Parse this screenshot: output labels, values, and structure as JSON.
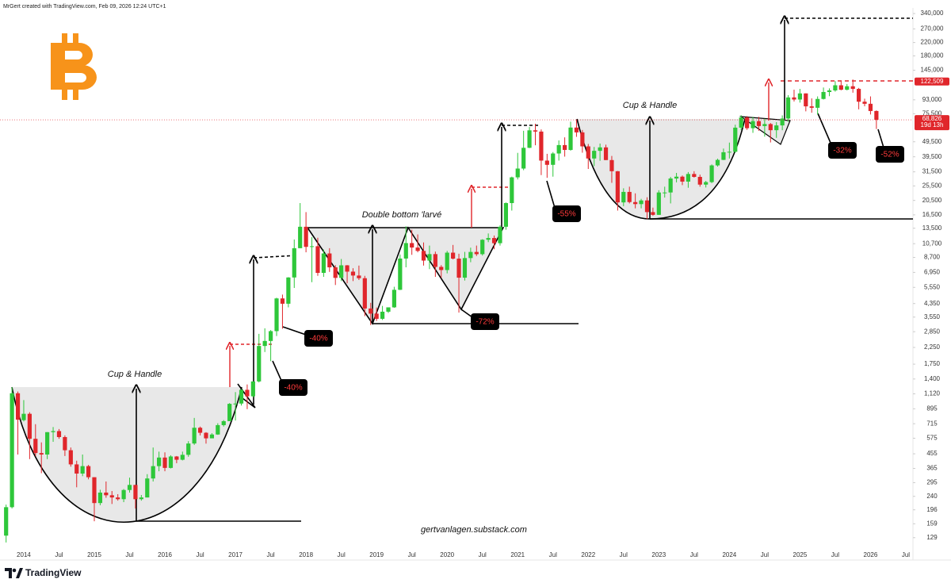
{
  "header": "MrGert created with TradingView.com, Feb 09, 2026 12:24 UTC+1",
  "footer_brand": "TradingView",
  "chart_data": {
    "type": "candlestick",
    "log": true,
    "grid": false,
    "up_color": "#2ec73a",
    "down_color": "#e0262b",
    "x": [
      "2013-10",
      "2013-11",
      "2013-12",
      "2014-01",
      "2014-02",
      "2014-03",
      "2014-04",
      "2014-05",
      "2014-06",
      "2014-07",
      "2014-08",
      "2014-09",
      "2014-10",
      "2014-11",
      "2014-12",
      "2015-01",
      "2015-02",
      "2015-03",
      "2015-04",
      "2015-05",
      "2015-06",
      "2015-07",
      "2015-08",
      "2015-09",
      "2015-10",
      "2015-11",
      "2015-12",
      "2016-01",
      "2016-02",
      "2016-03",
      "2016-04",
      "2016-05",
      "2016-06",
      "2016-07",
      "2016-08",
      "2016-09",
      "2016-10",
      "2016-11",
      "2016-12",
      "2017-01",
      "2017-02",
      "2017-03",
      "2017-04",
      "2017-05",
      "2017-06",
      "2017-07",
      "2017-08",
      "2017-09",
      "2017-10",
      "2017-11",
      "2017-12",
      "2018-01",
      "2018-02",
      "2018-03",
      "2018-04",
      "2018-05",
      "2018-06",
      "2018-07",
      "2018-08",
      "2018-09",
      "2018-10",
      "2018-11",
      "2018-12",
      "2019-01",
      "2019-02",
      "2019-03",
      "2019-04",
      "2019-05",
      "2019-06",
      "2019-07",
      "2019-08",
      "2019-09",
      "2019-10",
      "2019-11",
      "2019-12",
      "2020-01",
      "2020-02",
      "2020-03",
      "2020-04",
      "2020-05",
      "2020-06",
      "2020-07",
      "2020-08",
      "2020-09",
      "2020-10",
      "2020-11",
      "2020-12",
      "2021-01",
      "2021-02",
      "2021-03",
      "2021-04",
      "2021-05",
      "2021-06",
      "2021-07",
      "2021-08",
      "2021-09",
      "2021-10",
      "2021-11",
      "2021-12",
      "2022-01",
      "2022-02",
      "2022-03",
      "2022-04",
      "2022-05",
      "2022-06",
      "2022-07",
      "2022-08",
      "2022-09",
      "2022-10",
      "2022-11",
      "2022-12",
      "2023-01",
      "2023-02",
      "2023-03",
      "2023-04",
      "2023-05",
      "2023-06",
      "2023-07",
      "2023-08",
      "2023-09",
      "2023-10",
      "2023-11",
      "2023-12",
      "2024-01",
      "2024-02",
      "2024-03",
      "2024-04",
      "2024-05",
      "2024-06",
      "2024-07",
      "2024-08",
      "2024-09",
      "2024-10",
      "2024-11",
      "2024-12",
      "2025-01",
      "2025-02",
      "2025-03",
      "2025-04",
      "2025-05",
      "2025-06",
      "2025-07",
      "2025-08",
      "2025-09",
      "2025-10",
      "2025-11",
      "2025-12",
      "2026-01",
      "2026-02"
    ],
    "open": [
      133,
      204,
      1130,
      754,
      830,
      570,
      460,
      450,
      630,
      640,
      585,
      480,
      388,
      338,
      378,
      320,
      217,
      254,
      244,
      236,
      230,
      264,
      285,
      230,
      236,
      314,
      378,
      430,
      368,
      437,
      416,
      448,
      531,
      673,
      624,
      574,
      608,
      700,
      743,
      964,
      968,
      1190,
      1080,
      1350,
      2300,
      2480,
      2875,
      4700,
      4340,
      6440,
      10000,
      13800,
      10200,
      10300,
      6900,
      9240,
      7500,
      6400,
      7730,
      7030,
      6630,
      6370,
      4040,
      3740,
      3460,
      3850,
      4110,
      5350,
      8560,
      10800,
      10100,
      9600,
      8300,
      9150,
      7550,
      7200,
      9350,
      8550,
      6420,
      8620,
      9450,
      9140,
      11350,
      11650,
      10780,
      13800,
      19700,
      29000,
      33100,
      45200,
      58800,
      57700,
      37300,
      35000,
      41500,
      47100,
      43800,
      61300,
      57000,
      46200,
      38500,
      43200,
      45500,
      37600,
      31800,
      19900,
      23300,
      20000,
      19400,
      20500,
      17200,
      16500,
      23100,
      23100,
      28500,
      29300,
      27200,
      30500,
      29200,
      26000,
      27000,
      34700,
      37700,
      42300,
      42600,
      61200,
      71300,
      60700,
      67500,
      62700,
      64600,
      58900,
      63300,
      70200,
      96400,
      93400,
      102400,
      84300,
      82500,
      94200,
      104600,
      107100,
      115700,
      108200,
      114000,
      109600,
      90400,
      87600,
      78600
    ],
    "high": [
      212,
      1240,
      1160,
      1020,
      850,
      710,
      540,
      630,
      680,
      660,
      600,
      500,
      410,
      450,
      385,
      320,
      265,
      300,
      260,
      248,
      268,
      318,
      285,
      245,
      335,
      500,
      470,
      465,
      445,
      440,
      470,
      550,
      780,
      685,
      630,
      620,
      720,
      755,
      975,
      1150,
      1200,
      1290,
      1350,
      2760,
      3000,
      2920,
      4750,
      4980,
      6470,
      11400,
      19700,
      17200,
      11800,
      11700,
      9800,
      10000,
      7750,
      8500,
      7760,
      7400,
      7700,
      6600,
      4400,
      4100,
      4200,
      4100,
      5600,
      9100,
      13900,
      13200,
      12300,
      10900,
      10400,
      9500,
      7750,
      9600,
      10500,
      9200,
      9460,
      10080,
      10400,
      11450,
      12480,
      12100,
      14100,
      19900,
      29300,
      41900,
      58400,
      61800,
      64900,
      59600,
      41300,
      42400,
      50500,
      52900,
      67000,
      69000,
      59100,
      47900,
      45800,
      48200,
      47400,
      40000,
      31900,
      24600,
      25200,
      22800,
      21000,
      21500,
      18400,
      23900,
      25200,
      29200,
      31000,
      29800,
      31400,
      31800,
      30200,
      27500,
      35200,
      38400,
      44700,
      48900,
      64000,
      73800,
      72800,
      72000,
      72000,
      70000,
      65600,
      66500,
      73600,
      99800,
      108300,
      109600,
      102500,
      95000,
      97900,
      111900,
      110500,
      123200,
      124400,
      117900,
      126200,
      111200,
      94600,
      97900,
      79300
    ],
    "low": [
      120,
      200,
      450,
      740,
      420,
      440,
      340,
      420,
      545,
      570,
      440,
      375,
      275,
      325,
      310,
      165,
      210,
      235,
      214,
      225,
      220,
      254,
      200,
      225,
      236,
      300,
      350,
      350,
      365,
      395,
      412,
      435,
      520,
      600,
      530,
      575,
      605,
      685,
      745,
      750,
      940,
      890,
      1060,
      1330,
      2100,
      1830,
      2670,
      2980,
      4110,
      5500,
      10000,
      9400,
      6000,
      6600,
      6500,
      7000,
      5750,
      6100,
      5900,
      6100,
      6200,
      3600,
      3150,
      3350,
      3400,
      3780,
      4080,
      5330,
      7500,
      9050,
      9400,
      7700,
      7300,
      6500,
      6400,
      6850,
      8450,
      3800,
      6150,
      8100,
      8900,
      8950,
      10950,
      9850,
      10400,
      13200,
      17600,
      28100,
      32300,
      45000,
      47000,
      30000,
      28800,
      29300,
      37300,
      39600,
      43300,
      53300,
      42000,
      32900,
      34300,
      37200,
      37600,
      26700,
      17600,
      18800,
      19600,
      18200,
      18200,
      15500,
      16300,
      16500,
      21400,
      19600,
      26900,
      25800,
      24800,
      28900,
      25200,
      24900,
      26600,
      34100,
      37600,
      38500,
      41900,
      59000,
      59200,
      56600,
      58400,
      53500,
      49000,
      52500,
      58900,
      66800,
      90700,
      89200,
      78200,
      76600,
      74400,
      93400,
      98200,
      105100,
      107300,
      107200,
      103500,
      80600,
      84400,
      74600,
      60000
    ],
    "close": [
      204,
      1130,
      760,
      830,
      570,
      460,
      450,
      630,
      640,
      585,
      480,
      388,
      338,
      378,
      320,
      217,
      254,
      244,
      236,
      230,
      264,
      285,
      230,
      236,
      314,
      378,
      430,
      368,
      437,
      416,
      448,
      531,
      673,
      624,
      574,
      608,
      700,
      743,
      964,
      968,
      1190,
      1080,
      1350,
      2300,
      2480,
      2875,
      4700,
      4340,
      6440,
      10000,
      13800,
      10200,
      10300,
      6900,
      9240,
      7500,
      6400,
      7730,
      7030,
      6630,
      6370,
      4040,
      3740,
      3460,
      3850,
      4110,
      5350,
      8560,
      10800,
      10100,
      9600,
      8300,
      9150,
      7550,
      7200,
      9350,
      8550,
      6420,
      8620,
      9450,
      9140,
      11350,
      11650,
      10780,
      13800,
      19700,
      29000,
      33100,
      45200,
      58800,
      57700,
      37300,
      35000,
      41500,
      47100,
      43800,
      61300,
      57000,
      46200,
      38500,
      43200,
      45500,
      37600,
      31800,
      19900,
      23300,
      20000,
      19400,
      20500,
      17200,
      16500,
      23100,
      23100,
      28500,
      29300,
      27200,
      30500,
      29200,
      26000,
      27000,
      34700,
      37700,
      42300,
      42600,
      61200,
      71300,
      60700,
      67500,
      62700,
      64600,
      58900,
      63300,
      70200,
      96400,
      93400,
      102400,
      84300,
      82500,
      94200,
      104600,
      107100,
      115700,
      108200,
      114000,
      109600,
      90400,
      87600,
      78600,
      68826
    ],
    "ylim": [
      99,
      370000
    ],
    "yticks": [
      129,
      159,
      196,
      240,
      295,
      365,
      455,
      575,
      715,
      895,
      {
        "value": 1120,
        "label": "1,120"
      },
      {
        "value": 1400,
        "label": "1,400"
      },
      {
        "value": 1750,
        "label": "1,750"
      },
      {
        "value": 2250,
        "label": "2,250"
      },
      {
        "value": 2850,
        "label": "2,850"
      },
      {
        "value": 3550,
        "label": "3,550"
      },
      {
        "value": 4350,
        "label": "4,350"
      },
      {
        "value": 5550,
        "label": "5,550"
      },
      {
        "value": 6950,
        "label": "6,950"
      },
      {
        "value": 8700,
        "label": "8,700"
      },
      {
        "value": 10700,
        "label": "10,700"
      },
      {
        "value": 13500,
        "label": "13,500"
      },
      {
        "value": 16500,
        "label": "16,500"
      },
      {
        "value": 20500,
        "label": "20,500"
      },
      {
        "value": 25500,
        "label": "25,500"
      },
      {
        "value": 31500,
        "label": "31,500"
      },
      {
        "value": 39500,
        "label": "39,500"
      },
      {
        "value": 49500,
        "label": "49,500"
      },
      {
        "value": 75500,
        "label": "75,500"
      },
      {
        "value": 93000,
        "label": "93,000"
      },
      {
        "value": 145000,
        "label": "145,000"
      },
      {
        "value": 180000,
        "label": "180,000"
      },
      {
        "value": 220000,
        "label": "220,000"
      },
      {
        "value": 270000,
        "label": "270,000"
      },
      {
        "value": 340000,
        "label": "340,000"
      }
    ],
    "xticks": [
      {
        "value": "2014-01",
        "label": "2014"
      },
      {
        "value": "2014-07",
        "label": "Jul"
      },
      {
        "value": "2015-01",
        "label": "2015"
      },
      {
        "value": "2015-07",
        "label": "Jul"
      },
      {
        "value": "2016-01",
        "label": "2016"
      },
      {
        "value": "2016-07",
        "label": "Jul"
      },
      {
        "value": "2017-01",
        "label": "2017"
      },
      {
        "value": "2017-07",
        "label": "Jul"
      },
      {
        "value": "2018-01",
        "label": "2018"
      },
      {
        "value": "2018-07",
        "label": "Jul"
      },
      {
        "value": "2019-01",
        "label": "2019"
      },
      {
        "value": "2019-07",
        "label": "Jul"
      },
      {
        "value": "2020-01",
        "label": "2020"
      },
      {
        "value": "2020-07",
        "label": "Jul"
      },
      {
        "value": "2021-01",
        "label": "2021"
      },
      {
        "value": "2021-07",
        "label": "Jul"
      },
      {
        "value": "2022-01",
        "label": "2022"
      },
      {
        "value": "2022-07",
        "label": "Jul"
      },
      {
        "value": "2023-01",
        "label": "2023"
      },
      {
        "value": "2023-07",
        "label": "Jul"
      },
      {
        "value": "2024-01",
        "label": "2024"
      },
      {
        "value": "2024-07",
        "label": "Jul"
      },
      {
        "value": "2025-01",
        "label": "2025"
      },
      {
        "value": "2025-07",
        "label": "Jul"
      },
      {
        "value": "2026-01",
        "label": "2026"
      },
      {
        "value": "2026-07",
        "label": "Jul"
      }
    ],
    "last_price": {
      "value": 68826,
      "label": "68,826"
    },
    "countdown": "19d 13h",
    "level_price": {
      "value": 122509,
      "label": "122,509"
    },
    "pattern_labels": [
      "Cup & Handle",
      "Double bottom 'larvé",
      "Cup & Handle"
    ],
    "drawdown_labels": [
      "-40%",
      "-40%",
      "-72%",
      "-55%",
      "-32%",
      "-52%"
    ],
    "watermark": "gertvanlagen.substack.com"
  }
}
